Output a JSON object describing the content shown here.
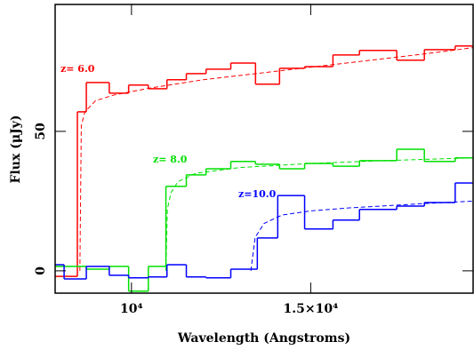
{
  "chart_data": {
    "type": "step",
    "x_label": "Wavelength (Angstroms)",
    "y_label": "Flux (μJy)",
    "xlim": [
      7870,
      19530
    ],
    "ylim": [
      -8,
      95.5
    ],
    "xticks": [
      {
        "value": 10000,
        "label": "10⁴"
      },
      {
        "value": 15000,
        "label": "1.5×10⁴"
      }
    ],
    "yticks": [
      0,
      50
    ],
    "series": [
      {
        "name": "z= 6.0",
        "color": "#ff0000",
        "bins": [
          7870,
          8490,
          8740,
          9380,
          9920,
          10470,
          10990,
          11530,
          12080,
          12770,
          13460,
          14130,
          14830,
          15620,
          16360,
          17400,
          18170,
          19030,
          19530
        ],
        "values": [
          -2,
          57,
          67.5,
          63.7,
          66.6,
          65.3,
          68.5,
          70.7,
          72.3,
          74.5,
          66.9,
          72.6,
          73.2,
          77.4,
          79,
          75.5,
          79.3,
          80.6
        ],
        "model_x": [
          8560,
          8600,
          8700,
          9000,
          9500,
          10500,
          12000,
          14000,
          16000,
          18000,
          19530
        ],
        "model_values": [
          0,
          52,
          57,
          61,
          63,
          65.5,
          68.5,
          71.5,
          74.5,
          77.5,
          80
        ]
      },
      {
        "name": "z= 8.0",
        "color": "#00e000",
        "bins": [
          7870,
          8740,
          9380,
          9920,
          10470,
          10960,
          11530,
          12080,
          12770,
          13460,
          14130,
          14830,
          15620,
          16360,
          17400,
          18170,
          19030,
          19530
        ],
        "values": [
          1.6,
          0.6,
          1.6,
          -7.3,
          1.6,
          30.3,
          34.4,
          36.6,
          39.2,
          38.2,
          36.6,
          38.5,
          37.5,
          39.5,
          43.6,
          39.2,
          40.5
        ],
        "model_x": [
          10960,
          11000,
          11100,
          11300,
          11800,
          13000,
          15000,
          17000,
          19530
        ],
        "model_values": [
          0,
          22,
          28,
          32,
          35,
          37,
          38.5,
          39.5,
          40.5
        ]
      },
      {
        "name": "z=10.0",
        "color": "#0000ff",
        "bins": [
          7870,
          8120,
          8740,
          9380,
          9920,
          10470,
          10990,
          11530,
          12080,
          12770,
          13510,
          14080,
          14830,
          15620,
          16360,
          17400,
          18170,
          19030,
          19530
        ],
        "values": [
          2.2,
          -2.9,
          1.6,
          -1.6,
          -2.5,
          -2.2,
          2.2,
          -2.2,
          -2.5,
          0.6,
          11.8,
          27,
          15,
          18.2,
          22,
          23.2,
          24.5,
          31.5
        ],
        "model_x": [
          13330,
          13450,
          13700,
          14200,
          15000,
          16000,
          18000,
          19530
        ],
        "model_values": [
          0,
          12,
          17,
          20,
          21.5,
          22.5,
          24,
          25
        ]
      }
    ]
  }
}
